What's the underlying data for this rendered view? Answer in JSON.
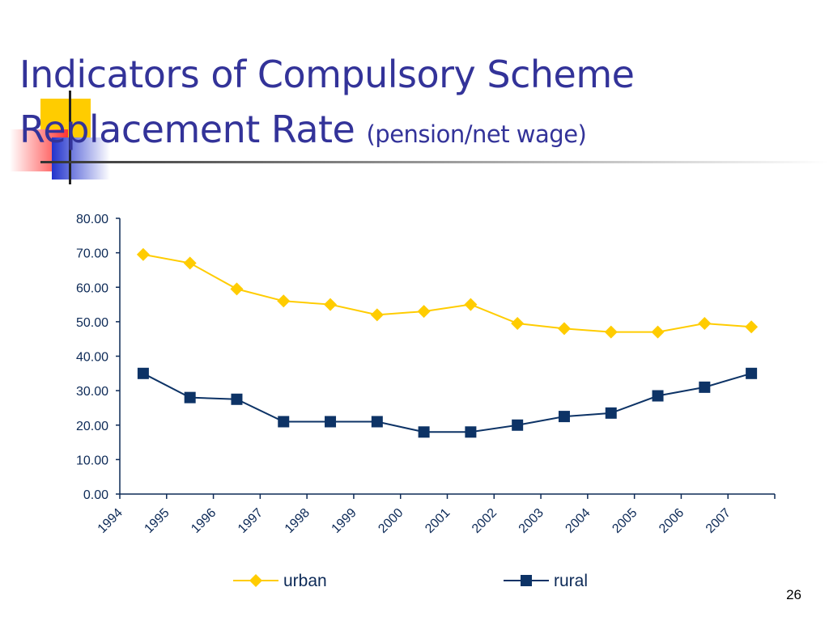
{
  "slide": {
    "title_main": "Indicators of Compulsory Scheme Replacement Rate",
    "title_sub": "(pension/net wage)",
    "page_number": "26"
  },
  "colors": {
    "title": "#333399",
    "urban": "#FFCC00",
    "rural": "#0D3366",
    "axis": "#0D2A57"
  },
  "chart_data": {
    "type": "line",
    "categories": [
      "1994",
      "1995",
      "1996",
      "1997",
      "1998",
      "1999",
      "2000",
      "2001",
      "2002",
      "2003",
      "2004",
      "2005",
      "2006",
      "2007"
    ],
    "series": [
      {
        "name": "urban",
        "marker": "diamond",
        "color": "#FFCC00",
        "values": [
          69.5,
          67.0,
          59.5,
          56.0,
          55.0,
          52.0,
          53.0,
          55.0,
          49.5,
          48.0,
          47.0,
          47.0,
          49.5,
          48.5
        ]
      },
      {
        "name": "rural",
        "marker": "square",
        "color": "#0D3366",
        "values": [
          35.0,
          28.0,
          27.5,
          21.0,
          21.0,
          21.0,
          18.0,
          18.0,
          20.0,
          22.5,
          23.5,
          28.5,
          31.0,
          35.0
        ]
      }
    ],
    "ylim": [
      0,
      80
    ],
    "yticks": [
      "0.00",
      "10.00",
      "20.00",
      "30.00",
      "40.00",
      "50.00",
      "60.00",
      "70.00",
      "80.00"
    ],
    "xlabel": "",
    "ylabel": "",
    "legend": "bottom",
    "grid": false
  }
}
